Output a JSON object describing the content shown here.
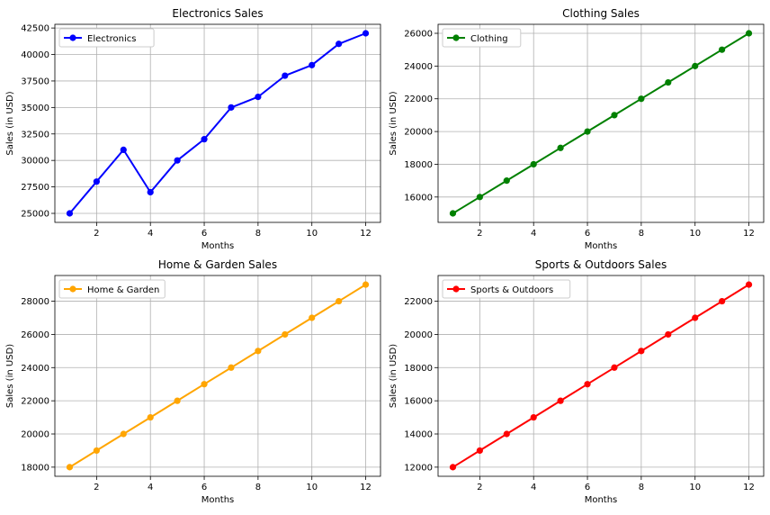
{
  "chart_data": [
    {
      "type": "line",
      "title": "Electronics Sales",
      "xlabel": "Months",
      "ylabel": "Sales (in USD)",
      "color": "#0000ff",
      "x": [
        1,
        2,
        3,
        4,
        5,
        6,
        7,
        8,
        9,
        10,
        11,
        12
      ],
      "series": [
        {
          "name": "Electronics",
          "values": [
            25000,
            28000,
            31000,
            27000,
            30000,
            32000,
            35000,
            36000,
            38000,
            39000,
            41000,
            42000
          ]
        }
      ],
      "xlim": [
        0.45,
        12.55
      ],
      "ylim": [
        24150,
        42850
      ],
      "xticks": [
        2,
        4,
        6,
        8,
        10,
        12
      ],
      "xtick_labels": [
        "2",
        "4",
        "6",
        "8",
        "10",
        "12"
      ],
      "yticks": [
        25000,
        27500,
        30000,
        32500,
        35000,
        37500,
        40000,
        42500
      ],
      "ytick_labels": [
        "25000",
        "27500",
        "30000",
        "32500",
        "35000",
        "37500",
        "40000",
        "42500"
      ],
      "grid": true,
      "legend_position": "top-left"
    },
    {
      "type": "line",
      "title": "Clothing Sales",
      "xlabel": "Months",
      "ylabel": "Sales (in USD)",
      "color": "#008000",
      "x": [
        1,
        2,
        3,
        4,
        5,
        6,
        7,
        8,
        9,
        10,
        11,
        12
      ],
      "series": [
        {
          "name": "Clothing",
          "values": [
            15000,
            16000,
            17000,
            18000,
            19000,
            20000,
            21000,
            22000,
            23000,
            24000,
            25000,
            26000
          ]
        }
      ],
      "xlim": [
        0.45,
        12.55
      ],
      "ylim": [
        14450,
        26550
      ],
      "xticks": [
        2,
        4,
        6,
        8,
        10,
        12
      ],
      "xtick_labels": [
        "2",
        "4",
        "6",
        "8",
        "10",
        "12"
      ],
      "yticks": [
        16000,
        18000,
        20000,
        22000,
        24000,
        26000
      ],
      "ytick_labels": [
        "16000",
        "18000",
        "20000",
        "22000",
        "24000",
        "26000"
      ],
      "grid": true,
      "legend_position": "top-left"
    },
    {
      "type": "line",
      "title": "Home & Garden Sales",
      "xlabel": "Months",
      "ylabel": "Sales (in USD)",
      "color": "#ffa500",
      "x": [
        1,
        2,
        3,
        4,
        5,
        6,
        7,
        8,
        9,
        10,
        11,
        12
      ],
      "series": [
        {
          "name": "Home & Garden",
          "values": [
            18000,
            19000,
            20000,
            21000,
            22000,
            23000,
            24000,
            25000,
            26000,
            27000,
            28000,
            29000
          ]
        }
      ],
      "xlim": [
        0.45,
        12.55
      ],
      "ylim": [
        17450,
        29550
      ],
      "xticks": [
        2,
        4,
        6,
        8,
        10,
        12
      ],
      "xtick_labels": [
        "2",
        "4",
        "6",
        "8",
        "10",
        "12"
      ],
      "yticks": [
        18000,
        20000,
        22000,
        24000,
        26000,
        28000
      ],
      "ytick_labels": [
        "18000",
        "20000",
        "22000",
        "24000",
        "26000",
        "28000"
      ],
      "grid": true,
      "legend_position": "top-left"
    },
    {
      "type": "line",
      "title": "Sports & Outdoors Sales",
      "xlabel": "Months",
      "ylabel": "Sales (in USD)",
      "color": "#ff0000",
      "x": [
        1,
        2,
        3,
        4,
        5,
        6,
        7,
        8,
        9,
        10,
        11,
        12
      ],
      "series": [
        {
          "name": "Sports & Outdoors",
          "values": [
            12000,
            13000,
            14000,
            15000,
            16000,
            17000,
            18000,
            19000,
            20000,
            21000,
            22000,
            23000
          ]
        }
      ],
      "xlim": [
        0.45,
        12.55
      ],
      "ylim": [
        11450,
        23550
      ],
      "xticks": [
        2,
        4,
        6,
        8,
        10,
        12
      ],
      "xtick_labels": [
        "2",
        "4",
        "6",
        "8",
        "10",
        "12"
      ],
      "yticks": [
        12000,
        14000,
        16000,
        18000,
        20000,
        22000
      ],
      "ytick_labels": [
        "12000",
        "14000",
        "16000",
        "18000",
        "20000",
        "22000"
      ],
      "grid": true,
      "legend_position": "top-left"
    }
  ]
}
